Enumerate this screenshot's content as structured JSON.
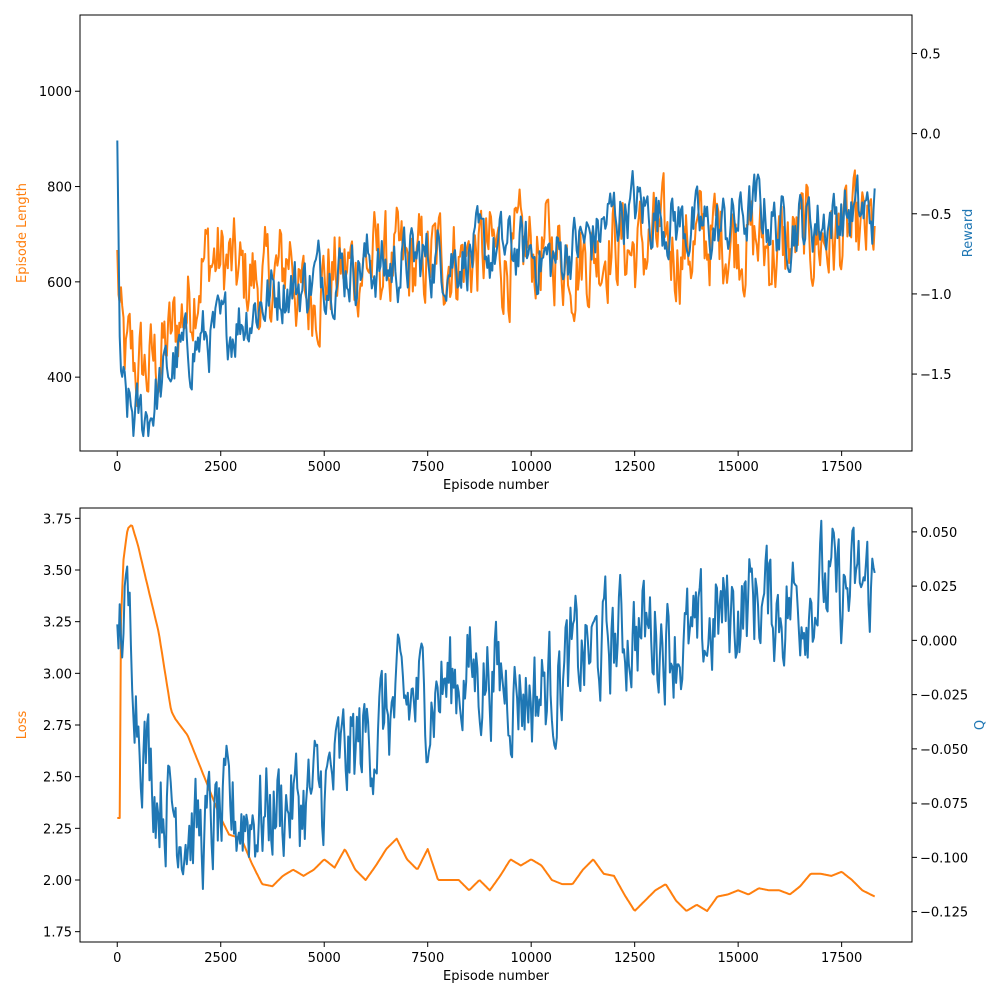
{
  "colors": {
    "orange": "#ff7f0e",
    "blue": "#1f77b4",
    "axis": "#000000"
  },
  "chart_data": [
    {
      "type": "line",
      "xlabel": "Episode number",
      "xlim": [
        -900,
        19200
      ],
      "xticks": [
        0,
        2500,
        5000,
        7500,
        10000,
        12500,
        15000,
        17500
      ],
      "left_axis": {
        "label": "Episode Length",
        "color": "#ff7f0e",
        "ylim": [
          245,
          1160
        ],
        "ticks": [
          400,
          600,
          800,
          1000
        ]
      },
      "right_axis": {
        "label": "Reward",
        "color": "#1f77b4",
        "ylim": [
          -1.98,
          0.74
        ],
        "ticks": [
          -1.5,
          -1.0,
          -0.5,
          0.0,
          0.5
        ]
      },
      "grid": false,
      "series": [
        {
          "axis": "left",
          "color": "#ff7f0e",
          "x": [
            0,
            100,
            200,
            300,
            400,
            500,
            600,
            700,
            800,
            900,
            1000,
            1250,
            1500,
            1750,
            2000,
            2250,
            2500,
            2750,
            3000,
            3250,
            3500,
            3750,
            4000,
            4200,
            4400,
            4600,
            4800,
            5000,
            5500,
            6000,
            6500,
            7000,
            7500,
            8000,
            8500,
            9000,
            9500,
            10000,
            10500,
            11000,
            11500,
            11900,
            12250,
            12500,
            13000,
            13500,
            14000,
            14500,
            15000,
            15500,
            16000,
            16500,
            17000,
            17500,
            18000,
            18300
          ],
          "y": [
            640,
            480,
            420,
            440,
            430,
            410,
            420,
            410,
            420,
            430,
            440,
            470,
            520,
            560,
            640,
            650,
            640,
            630,
            600,
            610,
            580,
            600,
            620,
            680,
            560,
            560,
            590,
            610,
            620,
            640,
            640,
            620,
            640,
            660,
            650,
            660,
            640,
            660,
            670,
            650,
            660,
            690,
            680,
            660,
            680,
            670,
            680,
            700,
            700,
            680,
            660,
            690,
            690,
            690,
            690,
            700
          ],
          "noise": 120,
          "step": 30
        },
        {
          "axis": "right",
          "color": "#1f77b4",
          "x": [
            0,
            60,
            120,
            250,
            400,
            600,
            800,
            1000,
            1250,
            1500,
            2000,
            2500,
            3000,
            3500,
            4000,
            4500,
            5000,
            5500,
            6000,
            6500,
            7000,
            7500,
            8000,
            8500,
            9000,
            9500,
            10000,
            10500,
            11000,
            11500,
            12000,
            12500,
            13000,
            13500,
            14000,
            14500,
            15000,
            15500,
            16000,
            16500,
            17000,
            17500,
            18000,
            18300
          ],
          "y": [
            -0.2,
            -1.3,
            -1.65,
            -1.72,
            -1.78,
            -1.78,
            -1.72,
            -1.6,
            -1.48,
            -1.4,
            -1.3,
            -1.25,
            -1.15,
            -1.05,
            -0.95,
            -0.95,
            -0.85,
            -0.85,
            -0.8,
            -0.85,
            -0.8,
            -0.78,
            -0.78,
            -0.75,
            -0.75,
            -0.72,
            -0.75,
            -0.8,
            -0.7,
            -0.65,
            -0.5,
            -0.45,
            -0.5,
            -0.55,
            -0.6,
            -0.6,
            -0.55,
            -0.45,
            -0.6,
            -0.55,
            -0.55,
            -0.5,
            -0.5,
            -0.5
          ],
          "noise": 0.24,
          "step": 30
        }
      ]
    },
    {
      "type": "line",
      "xlabel": "Episode number",
      "xlim": [
        -900,
        19200
      ],
      "xticks": [
        0,
        2500,
        5000,
        7500,
        10000,
        12500,
        15000,
        17500
      ],
      "left_axis": {
        "label": "Loss",
        "color": "#ff7f0e",
        "ylim": [
          1.7,
          3.8
        ],
        "ticks": [
          1.75,
          2.0,
          2.25,
          2.5,
          2.75,
          3.0,
          3.25,
          3.5,
          3.75
        ]
      },
      "right_axis": {
        "label": "Q",
        "color": "#1f77b4",
        "ylim": [
          -0.139,
          0.061
        ],
        "ticks": [
          -0.125,
          -0.1,
          -0.075,
          -0.05,
          -0.025,
          0.0,
          0.025,
          0.05
        ]
      },
      "grid": false,
      "series": [
        {
          "axis": "left",
          "color": "#ff7f0e",
          "x": [
            0,
            60,
            80,
            150,
            250,
            350,
            500,
            700,
            1000,
            1300,
            1400,
            1700,
            2000,
            2300,
            2500,
            2700,
            3000,
            3250,
            3500,
            3750,
            4000,
            4250,
            4500,
            4750,
            5000,
            5250,
            5500,
            5750,
            6000,
            6250,
            6500,
            6750,
            7000,
            7250,
            7500,
            7750,
            8000,
            8250,
            8500,
            8750,
            9000,
            9250,
            9500,
            9750,
            10000,
            10250,
            10500,
            10750,
            11000,
            11250,
            11500,
            11750,
            12000,
            12250,
            12500,
            12750,
            13000,
            13250,
            13500,
            13750,
            14000,
            14250,
            14500,
            14750,
            15000,
            15250,
            15500,
            15750,
            16000,
            16250,
            16500,
            16750,
            17000,
            17250,
            17500,
            17750,
            18000,
            18300
          ],
          "y": [
            2.3,
            2.3,
            3.2,
            3.55,
            3.7,
            3.72,
            3.62,
            3.45,
            3.2,
            2.82,
            2.78,
            2.7,
            2.55,
            2.4,
            2.3,
            2.22,
            2.2,
            2.08,
            1.98,
            1.97,
            2.02,
            2.05,
            2.02,
            2.05,
            2.1,
            2.06,
            2.15,
            2.05,
            2.0,
            2.07,
            2.15,
            2.2,
            2.1,
            2.05,
            2.15,
            2.0,
            2.0,
            2.0,
            1.95,
            2.0,
            1.95,
            2.02,
            2.1,
            2.07,
            2.1,
            2.07,
            2.0,
            1.98,
            1.98,
            2.05,
            2.1,
            2.03,
            2.02,
            1.93,
            1.85,
            1.9,
            1.95,
            1.98,
            1.9,
            1.85,
            1.88,
            1.85,
            1.92,
            1.93,
            1.95,
            1.93,
            1.96,
            1.95,
            1.95,
            1.93,
            1.97,
            2.03,
            2.03,
            2.02,
            2.04,
            2.0,
            1.95,
            1.92
          ],
          "noise": 0.0,
          "step": 30
        },
        {
          "axis": "right",
          "color": "#1f77b4",
          "x": [
            0,
            100,
            200,
            300,
            400,
            500,
            700,
            1000,
            1500,
            2000,
            2500,
            3000,
            3500,
            4000,
            4500,
            5000,
            5500,
            6000,
            6500,
            7000,
            7500,
            8000,
            8500,
            9000,
            9500,
            10000,
            10500,
            11000,
            11500,
            12000,
            12500,
            13000,
            13500,
            14000,
            14500,
            15000,
            15500,
            16000,
            16500,
            17000,
            17500,
            18000,
            18300
          ],
          "y": [
            0.0,
            0.01,
            0.012,
            0.005,
            -0.005,
            -0.03,
            -0.05,
            -0.07,
            -0.08,
            -0.09,
            -0.085,
            -0.08,
            -0.08,
            -0.075,
            -0.075,
            -0.07,
            -0.055,
            -0.045,
            -0.035,
            -0.03,
            -0.025,
            -0.02,
            -0.015,
            -0.015,
            -0.02,
            -0.025,
            -0.02,
            -0.01,
            -0.005,
            0.0,
            0.005,
            0.005,
            0.0,
            -0.005,
            0.01,
            0.015,
            0.02,
            0.015,
            0.02,
            0.025,
            0.02,
            0.025,
            0.025
          ],
          "noise": 0.03,
          "step": 30
        }
      ]
    }
  ],
  "panels": [
    {
      "xlabel": "Episode number",
      "ylabel_left": "Episode Length",
      "ylabel_right": "Reward",
      "xtick_labels": [
        "0",
        "2500",
        "5000",
        "7500",
        "10000",
        "12500",
        "15000",
        "17500"
      ],
      "left_tick_labels": [
        "400",
        "600",
        "800",
        "1000"
      ],
      "right_tick_labels": [
        "−1.5",
        "−1.0",
        "−0.5",
        "0.0",
        "0.5"
      ]
    },
    {
      "xlabel": "Episode number",
      "ylabel_left": "Loss",
      "ylabel_right": "Q",
      "xtick_labels": [
        "0",
        "2500",
        "5000",
        "7500",
        "10000",
        "12500",
        "15000",
        "17500"
      ],
      "left_tick_labels": [
        "1.75",
        "2.00",
        "2.25",
        "2.50",
        "2.75",
        "3.00",
        "3.25",
        "3.50",
        "3.75"
      ],
      "right_tick_labels": [
        "−0.125",
        "−0.100",
        "−0.075",
        "−0.050",
        "−0.025",
        "0.000",
        "0.025",
        "0.050"
      ]
    }
  ]
}
